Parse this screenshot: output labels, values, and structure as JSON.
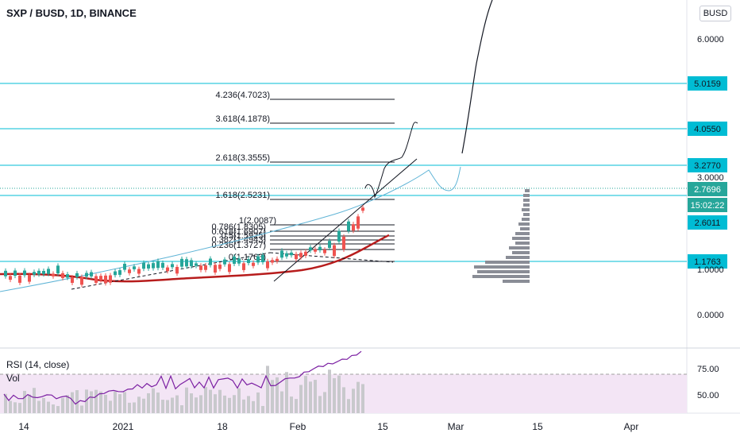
{
  "header": {
    "symbol_title": "SXP / BUSD, 1D, BINANCE",
    "currency": "BUSD"
  },
  "rsi_pane": {
    "title": "RSI (14, close)",
    "vol_label": "Vol",
    "ticks": [
      "75.00",
      "50.00"
    ]
  },
  "price_axis": {
    "ticks": [
      "6.0000",
      "3.0000",
      "1.0000",
      "0.0000"
    ],
    "level_labels": [
      "5.0159",
      "4.0550",
      "3.2770",
      "2.6011",
      "1.1763"
    ],
    "current_price": "2.7696",
    "countdown": "15:02:22"
  },
  "time_axis": {
    "ticks": [
      "14",
      "2021",
      "18",
      "Feb",
      "15",
      "Mar",
      "15",
      "Apr"
    ]
  },
  "fibonacci": [
    {
      "label": "4.236(4.7023)"
    },
    {
      "label": "3.618(4.1878)"
    },
    {
      "label": "2.618(3.3555)"
    },
    {
      "label": "1.618(2.5231)"
    },
    {
      "label": "1(2.0087)"
    },
    {
      "label": "0.786(1.8305)"
    },
    {
      "label": "0.618(1.6907)"
    },
    {
      "label": "0.5(1.5925)"
    },
    {
      "label": "0.382(1.4943)"
    },
    {
      "label": "0.236(1.3727)"
    },
    {
      "label": "0(1.1763)"
    }
  ],
  "colors": {
    "up": "#26a69a",
    "down": "#ef5350",
    "level": "#00bcd4",
    "ma": "#b71c1c",
    "trend": "#5fb4d6",
    "rsi": "#7b1fa2",
    "rsi_bg": "#f3e5f5"
  },
  "chart_data": {
    "type": "candlestick",
    "symbol": "SXP / BUSD",
    "interval": "1D",
    "exchange": "BINANCE",
    "horizontal_levels": [
      5.0159,
      4.055,
      3.277,
      2.6011,
      1.1763
    ],
    "current_price": 2.7696,
    "ohlc_sample": [
      {
        "date": "2021-01-01",
        "close": 0.78
      },
      {
        "date": "2021-01-18",
        "close": 0.92
      },
      {
        "date": "2021-01-25",
        "close": 1.05
      },
      {
        "date": "2021-02-01",
        "close": 1.25
      },
      {
        "date": "2021-02-05",
        "close": 1.7
      },
      {
        "date": "2021-02-09",
        "close": 2.4
      },
      {
        "date": "2021-02-11",
        "close": 2.7696
      }
    ]
  }
}
